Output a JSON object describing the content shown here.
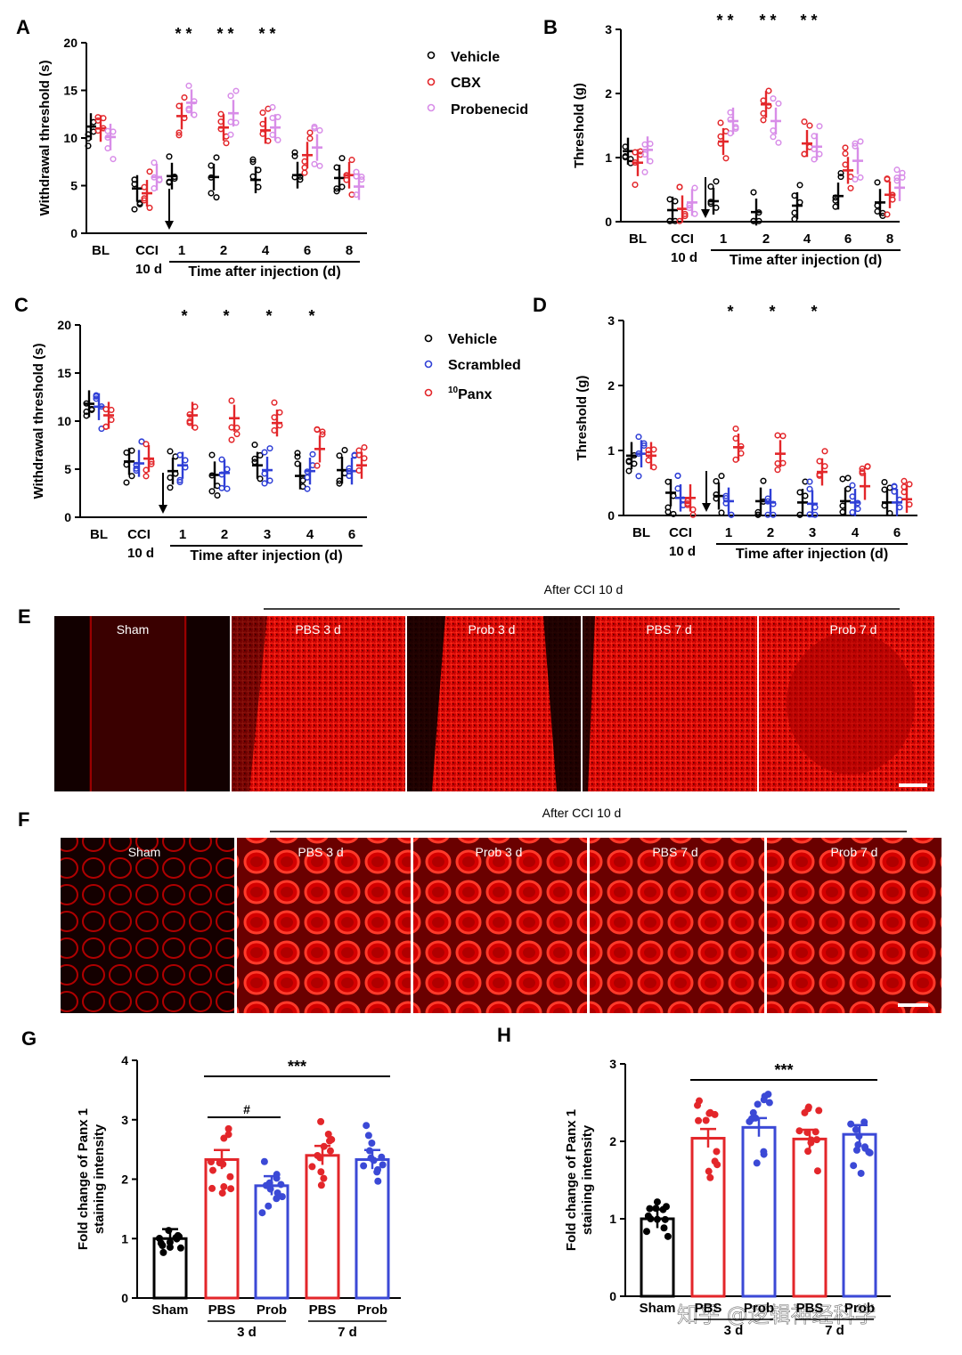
{
  "panels": {
    "A": "A",
    "B": "B",
    "C": "C",
    "D": "D",
    "E": "E",
    "F": "F",
    "G": "G",
    "H": "H"
  },
  "colors": {
    "vehicle": "#000000",
    "cbx": "#e3262a",
    "probenecid": "#d88de8",
    "scrambled": "#2f3fd6",
    "panx": "#e3262a",
    "pbs": "#e3262a",
    "prob": "#3b49d6",
    "sham": "#000000"
  },
  "legend_ab": [
    "Vehicle",
    "CBX",
    "Probenecid"
  ],
  "legend_cd": [
    "Vehicle",
    "Scrambled",
    "Panx"
  ],
  "legend_panx_sup": "10",
  "chart_data": [
    {
      "id": "A",
      "type": "scatter",
      "ylabel": "Withdrawal threshold (s)",
      "ylim": [
        0,
        20
      ],
      "yticks": [
        "0",
        "5",
        "10",
        "15",
        "20"
      ],
      "groups": [
        "BL",
        "CCI",
        "1",
        "2",
        "4",
        "6",
        "8"
      ],
      "group_sub": {
        "CCI": "10 d"
      },
      "xlabel": "Time after injection (d)",
      "series": [
        {
          "name": "Vehicle",
          "means": [
            11.2,
            4.7,
            6.0,
            5.9,
            5.6,
            6.1,
            5.8
          ]
        },
        {
          "name": "CBX",
          "means": [
            11.0,
            4.2,
            12.3,
            11.1,
            10.8,
            8.2,
            6.1
          ]
        },
        {
          "name": "Probenecid",
          "means": [
            10.1,
            5.9,
            13.7,
            12.6,
            11.1,
            9.0,
            4.9
          ]
        }
      ],
      "stars": [
        "",
        "",
        "* *",
        "* *",
        "* *",
        "",
        ""
      ]
    },
    {
      "id": "B",
      "type": "scatter",
      "ylabel": "Threshold (g)",
      "ylim": [
        0,
        3
      ],
      "yticks": [
        "0",
        "1",
        "2",
        "3"
      ],
      "groups": [
        "BL",
        "CCI",
        "1",
        "2",
        "4",
        "6",
        "8"
      ],
      "group_sub": {
        "CCI": "10 d"
      },
      "xlabel": "Time after injection (d)",
      "series": [
        {
          "name": "Vehicle",
          "means": [
            1.1,
            0.18,
            0.32,
            0.15,
            0.25,
            0.4,
            0.3
          ]
        },
        {
          "name": "CBX",
          "means": [
            0.92,
            0.2,
            1.25,
            1.83,
            1.22,
            0.8,
            0.42
          ]
        },
        {
          "name": "Probenecid",
          "means": [
            1.12,
            0.3,
            1.57,
            1.57,
            1.17,
            0.95,
            0.53
          ]
        }
      ],
      "stars": [
        "",
        "",
        "* *",
        "* *",
        "* *",
        "",
        ""
      ]
    },
    {
      "id": "C",
      "type": "scatter",
      "ylabel": "Withdrawal threshold (s)",
      "ylim": [
        0,
        20
      ],
      "yticks": [
        "0",
        "5",
        "10",
        "15",
        "20"
      ],
      "groups": [
        "BL",
        "CCI",
        "1",
        "2",
        "3",
        "4",
        "6"
      ],
      "group_sub": {
        "CCI": "10 d"
      },
      "xlabel": "Time after injection (d)",
      "series": [
        {
          "name": "Vehicle",
          "means": [
            11.8,
            5.8,
            4.8,
            4.4,
            5.4,
            4.3,
            4.9
          ]
        },
        {
          "name": "Scrambled",
          "means": [
            11.5,
            5.6,
            5.4,
            4.6,
            4.9,
            4.8,
            4.8
          ]
        },
        {
          "name": "Panx",
          "means": [
            10.6,
            6.1,
            10.6,
            10.3,
            9.8,
            7.1,
            5.4
          ]
        }
      ],
      "stars": [
        "",
        "",
        "*",
        "*",
        "*",
        "*",
        ""
      ]
    },
    {
      "id": "D",
      "type": "scatter",
      "ylabel": "Threshold (g)",
      "ylim": [
        0,
        3
      ],
      "yticks": [
        "0",
        "1",
        "2",
        "3"
      ],
      "groups": [
        "BL",
        "CCI",
        "1",
        "2",
        "3",
        "4",
        "6"
      ],
      "group_sub": {
        "CCI": "10 d"
      },
      "xlabel": "Time after injection (d)",
      "series": [
        {
          "name": "Vehicle",
          "means": [
            0.92,
            0.35,
            0.3,
            0.22,
            0.2,
            0.22,
            0.2
          ]
        },
        {
          "name": "Scrambled",
          "means": [
            0.95,
            0.27,
            0.22,
            0.2,
            0.18,
            0.2,
            0.2
          ]
        },
        {
          "name": "Panx",
          "means": [
            0.92,
            0.27,
            1.05,
            0.95,
            0.67,
            0.45,
            0.25
          ]
        }
      ],
      "stars": [
        "",
        "",
        "*",
        "*",
        "*",
        "",
        ""
      ]
    },
    {
      "id": "G",
      "type": "bar",
      "ylabel": "Fold change of Panx 1 staining intensity",
      "ylim": [
        0,
        4
      ],
      "yticks": [
        "0",
        "1",
        "2",
        "3",
        "4"
      ],
      "categories": [
        "Sham",
        "PBS",
        "Prob",
        "PBS",
        "Prob"
      ],
      "values": [
        1.0,
        2.33,
        1.89,
        2.4,
        2.33
      ],
      "group_labels": [
        "3 d",
        "7 d"
      ],
      "sig_top": "***",
      "sig_pair": "#"
    },
    {
      "id": "H",
      "type": "bar",
      "ylabel": "Fold change of Panx 1 staining intensity",
      "ylim": [
        0,
        3
      ],
      "yticks": [
        "0",
        "1",
        "2",
        "3"
      ],
      "categories": [
        "Sham",
        "PBS",
        "Prob",
        "PBS",
        "Prob"
      ],
      "values": [
        1.0,
        2.04,
        2.18,
        2.03,
        2.09
      ],
      "group_labels": [
        "3 d",
        "7 d"
      ],
      "sig_top": "***"
    }
  ],
  "micrographs": {
    "header": "After CCI 10 d",
    "E": [
      "Sham",
      "PBS 3 d",
      "Prob 3 d",
      "PBS 7 d",
      "Prob 7 d"
    ],
    "F": [
      "Sham",
      "PBS 3 d",
      "Prob 3 d",
      "PBS 7 d",
      "Prob 7 d"
    ]
  },
  "watermark": "知乎 @逻辑神经科学"
}
